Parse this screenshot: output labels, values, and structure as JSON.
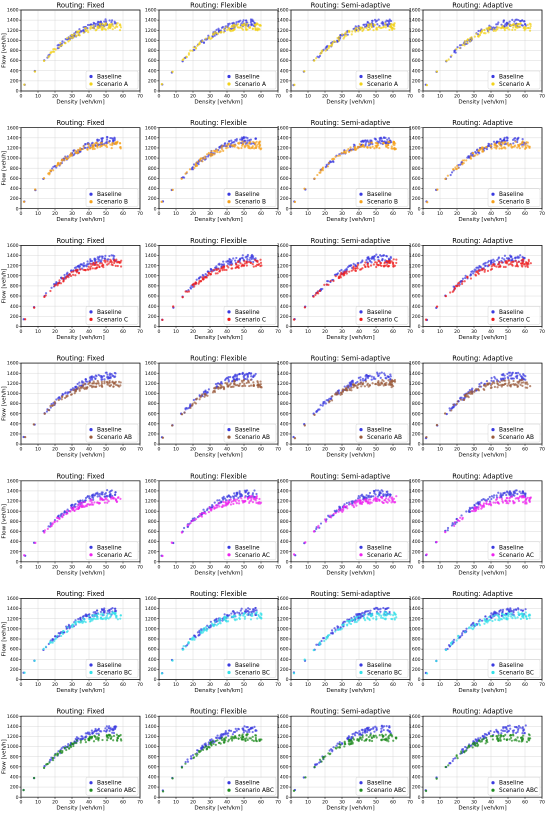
{
  "figure": {
    "routing_labels": [
      "Routing: Fixed",
      "Routing: Flexible",
      "Routing: Semi-adaptive",
      "Routing: Adaptive"
    ],
    "xlabel": "Density [veh/km]",
    "ylabel": "Flow [veh/h]",
    "baseline_label": "Baseline",
    "baseline_color": "#3a3ae0",
    "scenarios": [
      {
        "label": "Scenario A",
        "color": "#f2d21a"
      },
      {
        "label": "Scenario B",
        "color": "#f5a01a"
      },
      {
        "label": "Scenario C",
        "color": "#ee1c1c"
      },
      {
        "label": "Scenario AB",
        "color": "#9a5a3a"
      },
      {
        "label": "Scenario AC",
        "color": "#ee22ee"
      },
      {
        "label": "Scenario BC",
        "color": "#33e0e8"
      },
      {
        "label": "Scenario ABC",
        "color": "#1e8a1e"
      }
    ]
  },
  "chart_data": {
    "type": "scatter",
    "layout": "7 rows (scenarios) x 4 columns (routing strategies)",
    "xlabel": "Density [veh/km]",
    "ylabel": "Flow [veh/h]",
    "xlim": [
      0,
      70
    ],
    "xticks": [
      0,
      10,
      20,
      30,
      40,
      50,
      60,
      70
    ],
    "ylim": [
      0,
      1600
    ],
    "yticks": [
      0,
      200,
      400,
      600,
      800,
      1000,
      1200,
      1400,
      1600
    ],
    "grid": true,
    "legend_position": "lower-right",
    "baseline_curve": {
      "name": "Baseline",
      "density": [
        2,
        8,
        14,
        20,
        25,
        30,
        35,
        40,
        45,
        50,
        55
      ],
      "flow": [
        130,
        380,
        620,
        820,
        960,
        1080,
        1180,
        1260,
        1310,
        1350,
        1340
      ]
    },
    "scenario_curves": {
      "density": [
        2,
        8,
        14,
        20,
        25,
        30,
        35,
        40,
        45,
        50,
        55,
        60
      ],
      "Scenario A": [
        130,
        380,
        620,
        820,
        960,
        1070,
        1160,
        1220,
        1260,
        1270,
        1280,
        1270
      ],
      "Scenario B": [
        130,
        380,
        620,
        820,
        960,
        1070,
        1160,
        1220,
        1250,
        1260,
        1260,
        1250
      ],
      "Scenario C": [
        130,
        380,
        610,
        800,
        930,
        1030,
        1110,
        1170,
        1210,
        1240,
        1250,
        1250
      ],
      "Scenario AB": [
        130,
        380,
        610,
        800,
        930,
        1030,
        1110,
        1160,
        1190,
        1200,
        1200,
        1190
      ],
      "Scenario AC": [
        130,
        380,
        610,
        800,
        930,
        1030,
        1110,
        1170,
        1210,
        1220,
        1230,
        1220
      ],
      "Scenario BC": [
        130,
        380,
        610,
        800,
        940,
        1050,
        1140,
        1200,
        1230,
        1250,
        1260,
        1260
      ],
      "Scenario ABC": [
        130,
        380,
        610,
        800,
        930,
        1030,
        1100,
        1150,
        1170,
        1180,
        1180,
        1170
      ]
    }
  }
}
